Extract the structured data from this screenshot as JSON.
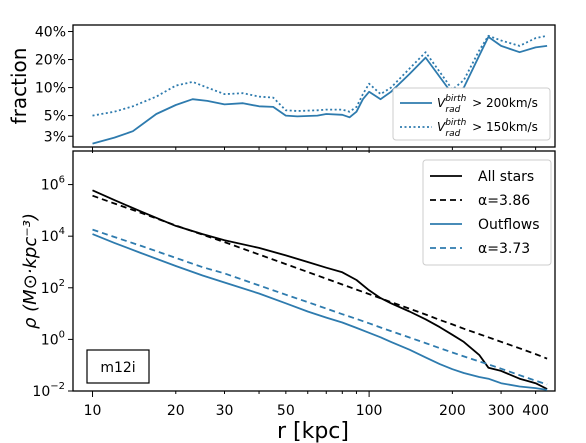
{
  "colors": {
    "blue": "#2E7BAE",
    "black": "#000000"
  },
  "top_panel": {
    "ylabel": "fraction",
    "y_ticks": [
      "40%",
      "20%",
      "10%",
      "5%",
      "3%"
    ],
    "legend": [
      {
        "label_main": "V",
        "label_sup": "birth",
        "label_sub": "rad",
        "label_rest": " > 200km/s",
        "style": "solid"
      },
      {
        "label_main": "V",
        "label_sup": "birth",
        "label_sub": "rad",
        "label_rest": " > 150km/s",
        "style": "dotted"
      }
    ]
  },
  "bottom_panel": {
    "ylabel": "ρ (M⊙·kpc⁻³)",
    "xlabel": "r [kpc]",
    "x_ticks": [
      "10",
      "20",
      "30",
      "50",
      "100",
      "200",
      "300",
      "400"
    ],
    "y_ticks": [
      {
        "base": "10",
        "exp": "6"
      },
      {
        "base": "10",
        "exp": "4"
      },
      {
        "base": "10",
        "exp": "2"
      },
      {
        "base": "10",
        "exp": "0"
      },
      {
        "base": "10",
        "exp": "−2"
      }
    ],
    "legend": [
      "All stars",
      "α=3.86",
      "Outflows",
      "α=3.73"
    ],
    "annotation": "m12i"
  },
  "chart_data": [
    {
      "type": "line",
      "title": "",
      "xlabel": "",
      "ylabel": "fraction",
      "xscale": "log",
      "yscale": "log",
      "xlim": [
        8.5,
        470
      ],
      "ylim": [
        0.023,
        0.47
      ],
      "x": [
        10,
        12,
        14,
        17,
        20,
        23,
        26,
        30,
        35,
        40,
        45,
        50,
        55,
        65,
        70,
        80,
        85,
        90,
        95,
        100,
        110,
        120,
        140,
        160,
        200,
        220,
        250,
        270,
        300,
        350,
        400,
        440
      ],
      "series": [
        {
          "name": "V_rad^birth > 200km/s",
          "style": "solid",
          "values": [
            0.025,
            0.029,
            0.034,
            0.052,
            0.065,
            0.075,
            0.072,
            0.066,
            0.068,
            0.063,
            0.062,
            0.05,
            0.049,
            0.05,
            0.052,
            0.051,
            0.048,
            0.055,
            0.075,
            0.09,
            0.075,
            0.09,
            0.14,
            0.21,
            0.085,
            0.1,
            0.22,
            0.35,
            0.28,
            0.24,
            0.27,
            0.28
          ]
        },
        {
          "name": "V_rad^birth > 150km/s",
          "style": "dotted",
          "values": [
            0.05,
            0.055,
            0.063,
            0.08,
            0.105,
            0.115,
            0.1,
            0.085,
            0.087,
            0.08,
            0.078,
            0.057,
            0.056,
            0.057,
            0.058,
            0.058,
            0.055,
            0.062,
            0.085,
            0.11,
            0.085,
            0.1,
            0.16,
            0.24,
            0.095,
            0.12,
            0.25,
            0.36,
            0.32,
            0.28,
            0.34,
            0.36
          ]
        }
      ]
    },
    {
      "type": "line",
      "title": "",
      "xlabel": "r [kpc]",
      "ylabel": "ρ (M⊙·kpc⁻³)",
      "xscale": "log",
      "yscale": "log",
      "xlim": [
        8.5,
        470
      ],
      "ylim": [
        0.01,
        20000000
      ],
      "x": [
        10,
        12,
        15,
        20,
        25,
        30,
        40,
        50,
        60,
        70,
        80,
        90,
        100,
        110,
        120,
        140,
        160,
        180,
        200,
        220,
        250,
        270,
        300,
        350,
        400,
        440
      ],
      "series": [
        {
          "name": "All stars",
          "style": "solid",
          "color": "black",
          "values": [
            600000,
            250000,
            90000,
            25000,
            12000,
            7000,
            3500,
            1800,
            1000,
            600,
            400,
            200,
            80,
            40,
            25,
            12,
            6,
            3,
            1.5,
            0.8,
            0.25,
            0.08,
            0.06,
            0.03,
            0.02,
            0.012
          ]
        },
        {
          "name": "α=3.86",
          "style": "dashed",
          "color": "black",
          "values": [
            370000,
            185000,
            80000,
            26000,
            11400,
            5900,
            1950,
            830,
            410,
            225,
            134,
            85,
            57,
            39,
            28,
            15.5,
            9.2,
            5.7,
            3.8,
            2.6,
            1.6,
            1.2,
            0.81,
            0.45,
            0.27,
            0.18
          ]
        },
        {
          "name": "Outflows",
          "style": "solid",
          "color": "blue",
          "values": [
            12000,
            5500,
            2200,
            700,
            300,
            160,
            60,
            25,
            12,
            7,
            4.5,
            2.8,
            1.8,
            1.2,
            0.8,
            0.4,
            0.2,
            0.11,
            0.07,
            0.05,
            0.035,
            0.03,
            0.02,
            0.015,
            0.013,
            0.011
          ]
        },
        {
          "name": "α=3.73",
          "style": "dashed",
          "color": "blue",
          "values": [
            18000,
            9300,
            4200,
            1440,
            630,
            360,
            124,
            54,
            28,
            15.6,
            9.5,
            6.2,
            4.2,
            2.9,
            2.1,
            1.18,
            0.72,
            0.46,
            0.31,
            0.22,
            0.14,
            0.107,
            0.073,
            0.041,
            0.025,
            0.018
          ]
        }
      ]
    }
  ]
}
